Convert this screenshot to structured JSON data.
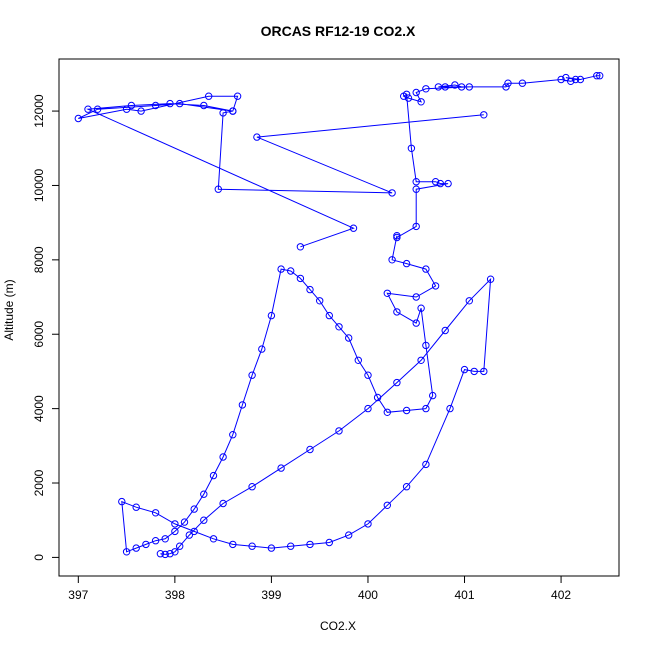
{
  "chart_data": {
    "type": "line",
    "title": "ORCAS RF12-19 CO2.X",
    "xlabel": "CO2.X",
    "ylabel": "Altitude (m)",
    "xlim": [
      396.8,
      402.6
    ],
    "ylim": [
      -500,
      13400
    ],
    "xticks": [
      397,
      398,
      399,
      400,
      401,
      402
    ],
    "yticks": [
      0,
      2000,
      4000,
      6000,
      8000,
      10000,
      12000
    ],
    "grid": false,
    "legend": "none",
    "series": [
      {
        "color": "#0000ff",
        "marker": "open-circle",
        "x": [
          402.4,
          402.37,
          402.2,
          402.05,
          402.15,
          402.1,
          402.0,
          401.6,
          401.45,
          401.43,
          400.8,
          400.73,
          400.9,
          400.97,
          401.05,
          400.6,
          400.5,
          400.55,
          400.42,
          400.37,
          400.4,
          400.45,
          400.5,
          400.7,
          400.75,
          400.83,
          400.5,
          400.5,
          400.3,
          400.3,
          400.25,
          400.4,
          400.6,
          400.7,
          400.5,
          400.2,
          400.3,
          400.5,
          400.55,
          400.6,
          400.67,
          400.6,
          400.4,
          400.2,
          400.1,
          400.0,
          399.9,
          399.8,
          399.7,
          399.6,
          399.5,
          399.4,
          399.3,
          399.2,
          399.1,
          399.0,
          398.9,
          398.8,
          398.7,
          398.6,
          398.5,
          398.4,
          398.3,
          398.2,
          398.1,
          398.0,
          397.9,
          397.8,
          397.7,
          397.6,
          397.5,
          397.45,
          397.6,
          397.8,
          398.0,
          398.2,
          398.4,
          398.6,
          398.8,
          399.0,
          399.2,
          399.4,
          399.6,
          399.8,
          400.0,
          400.2,
          400.4,
          400.6,
          400.85,
          401.0,
          401.1,
          401.2,
          401.27,
          401.05,
          400.8,
          400.55,
          400.3,
          400.0,
          399.7,
          399.4,
          399.1,
          398.8,
          398.5,
          398.3,
          398.15,
          398.05,
          398.0,
          397.95,
          397.9,
          397.85
        ],
        "y": [
          12950,
          12950,
          12850,
          12900,
          12850,
          12800,
          12850,
          12750,
          12750,
          12650,
          12650,
          12650,
          12700,
          12650,
          12650,
          12600,
          12500,
          12250,
          12350,
          12400,
          12450,
          11000,
          10100,
          10100,
          10050,
          10050,
          9900,
          8900,
          8600,
          8650,
          8000,
          7900,
          7750,
          7300,
          7000,
          7100,
          6600,
          6300,
          6700,
          5700,
          4350,
          4000,
          3950,
          3900,
          4300,
          4900,
          5300,
          5900,
          6200,
          6500,
          6900,
          7200,
          7500,
          7700,
          7750,
          6500,
          5600,
          4900,
          4100,
          3300,
          2700,
          2200,
          1700,
          1300,
          950,
          700,
          500,
          450,
          350,
          250,
          150,
          1500,
          1350,
          1200,
          900,
          700,
          500,
          350,
          300,
          250,
          300,
          350,
          400,
          600,
          900,
          1400,
          1900,
          2500,
          4000,
          5050,
          5000,
          5000,
          7480,
          6900,
          6100,
          5300,
          4700,
          4000,
          3400,
          2900,
          2400,
          1900,
          1450,
          1000,
          600,
          300,
          150,
          100,
          80,
          100
        ]
      },
      {
        "color": "#0000ff",
        "marker": "open-circle",
        "x": [
          401.2,
          398.85,
          400.25,
          398.45,
          398.5,
          398.6,
          398.65,
          398.35,
          397.65,
          397.5,
          397.0,
          397.2,
          397.8,
          398.05,
          398.6,
          398.3,
          397.95,
          397.55,
          397.1,
          399.85,
          399.3
        ],
        "y": [
          11900,
          11300,
          9800,
          9900,
          11950,
          12000,
          12400,
          12400,
          12000,
          12050,
          11800,
          12050,
          12150,
          12200,
          12000,
          12150,
          12200,
          12150,
          12050,
          8850,
          8350
        ]
      }
    ]
  }
}
